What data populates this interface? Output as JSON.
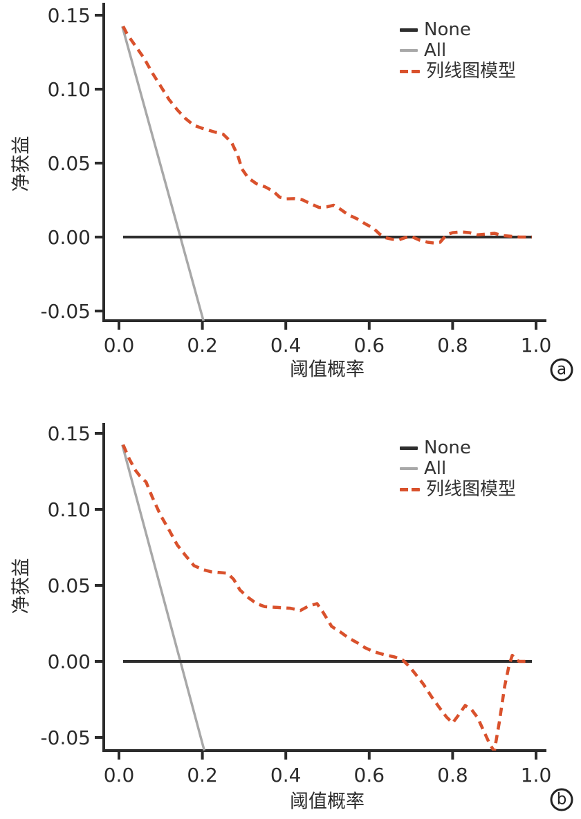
{
  "figure": {
    "background": "#ffffff",
    "panels": [
      "a",
      "b"
    ]
  },
  "colors": {
    "none": "#2d2d2d",
    "all": "#a8a8a8",
    "model": "#d9512c",
    "axis": "#2b2b2b",
    "text": "#333333"
  },
  "legend": {
    "items": [
      {
        "label": "None",
        "color": "#2d2d2d",
        "style": "solid"
      },
      {
        "label": "All",
        "color": "#a8a8a8",
        "style": "solid"
      },
      {
        "label": "列线图模型",
        "color": "#d9512c",
        "style": "dashed"
      }
    ]
  },
  "chart_data": [
    {
      "type": "line",
      "panel_label": "a",
      "xlabel": "阈值概率",
      "ylabel": "净获益",
      "xlim": [
        0,
        1
      ],
      "ylim": [
        -0.05,
        0.15
      ],
      "grid": false,
      "legend_position": "top-right",
      "x_ticks": [
        0,
        0.2,
        0.4,
        0.6,
        0.8,
        1.0
      ],
      "x_tick_labels": [
        "0.0",
        "0.2",
        "0.4",
        "0.6",
        "0.8",
        "1.0"
      ],
      "y_ticks": [
        0.15,
        0.1,
        0.05,
        0.0,
        -0.05
      ],
      "y_tick_labels": [
        "0.15",
        "0.10",
        "0.05",
        "0.00",
        "-0.05"
      ],
      "series": [
        {
          "name": "None",
          "color": "#2d2d2d",
          "style": "solid",
          "width": 4,
          "points": [
            [
              0.01,
              0
            ],
            [
              0.99,
              0
            ]
          ]
        },
        {
          "name": "All",
          "color": "#a8a8a8",
          "style": "solid",
          "width": 3.5,
          "points": [
            [
              0.008,
              0.1425
            ],
            [
              0.2035,
              -0.0575
            ]
          ]
        },
        {
          "name": "列线图模型",
          "color": "#d9512c",
          "style": "dashed",
          "width": 4.5,
          "points": [
            [
              0.01,
              0.1425
            ],
            [
              0.02,
              0.137
            ],
            [
              0.04,
              0.129
            ],
            [
              0.06,
              0.121
            ],
            [
              0.08,
              0.111
            ],
            [
              0.1,
              0.102
            ],
            [
              0.12,
              0.093
            ],
            [
              0.14,
              0.086
            ],
            [
              0.16,
              0.08
            ],
            [
              0.18,
              0.0755
            ],
            [
              0.2,
              0.0735
            ],
            [
              0.23,
              0.071
            ],
            [
              0.25,
              0.0695
            ],
            [
              0.27,
              0.064
            ],
            [
              0.285,
              0.055
            ],
            [
              0.295,
              0.046
            ],
            [
              0.31,
              0.04
            ],
            [
              0.33,
              0.036
            ],
            [
              0.35,
              0.034
            ],
            [
              0.37,
              0.031
            ],
            [
              0.385,
              0.027
            ],
            [
              0.4,
              0.0258
            ],
            [
              0.42,
              0.026
            ],
            [
              0.44,
              0.0252
            ],
            [
              0.46,
              0.0225
            ],
            [
              0.48,
              0.02
            ],
            [
              0.5,
              0.0205
            ],
            [
              0.515,
              0.0215
            ],
            [
              0.53,
              0.019
            ],
            [
              0.55,
              0.015
            ],
            [
              0.57,
              0.0125
            ],
            [
              0.59,
              0.009
            ],
            [
              0.61,
              0.006
            ],
            [
              0.625,
              0.002
            ],
            [
              0.64,
              -0.0005
            ],
            [
              0.655,
              -0.0015
            ],
            [
              0.67,
              -0.002
            ],
            [
              0.685,
              -0.0005
            ],
            [
              0.7,
              0.0005
            ],
            [
              0.72,
              -0.002
            ],
            [
              0.74,
              -0.0035
            ],
            [
              0.755,
              -0.004
            ],
            [
              0.77,
              -0.0035
            ],
            [
              0.785,
              0.0015
            ],
            [
              0.8,
              0.003
            ],
            [
              0.82,
              0.0035
            ],
            [
              0.84,
              0.003
            ],
            [
              0.86,
              0.0015
            ],
            [
              0.88,
              0.002
            ],
            [
              0.9,
              0.0025
            ],
            [
              0.92,
              0.001
            ],
            [
              0.94,
              0.0005
            ],
            [
              0.96,
              0
            ],
            [
              0.99,
              0
            ]
          ]
        }
      ]
    },
    {
      "type": "line",
      "panel_label": "b",
      "xlabel": "阈值概率",
      "ylabel": "净获益",
      "xlim": [
        0,
        1
      ],
      "ylim": [
        -0.05,
        0.15
      ],
      "grid": false,
      "legend_position": "top-right",
      "x_ticks": [
        0,
        0.2,
        0.4,
        0.6,
        0.8,
        1.0
      ],
      "x_tick_labels": [
        "0.0",
        "0.2",
        "0.4",
        "0.6",
        "0.8",
        "1.0"
      ],
      "y_ticks": [
        0.15,
        0.1,
        0.05,
        0.0,
        -0.05
      ],
      "y_tick_labels": [
        "0.15",
        "0.10",
        "0.05",
        "0.00",
        "-0.05"
      ],
      "series": [
        {
          "name": "None",
          "color": "#2d2d2d",
          "style": "solid",
          "width": 4,
          "points": [
            [
              0.01,
              0
            ],
            [
              0.99,
              0
            ]
          ]
        },
        {
          "name": "All",
          "color": "#a8a8a8",
          "style": "solid",
          "width": 3.5,
          "points": [
            [
              0.008,
              0.1425
            ],
            [
              0.2045,
              -0.0585
            ]
          ]
        },
        {
          "name": "列线图模型",
          "color": "#d9512c",
          "style": "dashed",
          "width": 4.5,
          "points": [
            [
              0.01,
              0.1425
            ],
            [
              0.025,
              0.133
            ],
            [
              0.04,
              0.1255
            ],
            [
              0.05,
              0.122
            ],
            [
              0.065,
              0.118
            ],
            [
              0.08,
              0.108
            ],
            [
              0.1,
              0.096
            ],
            [
              0.12,
              0.0865
            ],
            [
              0.14,
              0.0765
            ],
            [
              0.16,
              0.0695
            ],
            [
              0.18,
              0.063
            ],
            [
              0.2,
              0.0605
            ],
            [
              0.22,
              0.059
            ],
            [
              0.24,
              0.0585
            ],
            [
              0.26,
              0.058
            ],
            [
              0.275,
              0.054
            ],
            [
              0.29,
              0.047
            ],
            [
              0.31,
              0.042
            ],
            [
              0.33,
              0.038
            ],
            [
              0.35,
              0.036
            ],
            [
              0.38,
              0.0355
            ],
            [
              0.41,
              0.035
            ],
            [
              0.435,
              0.0335
            ],
            [
              0.455,
              0.0365
            ],
            [
              0.475,
              0.038
            ],
            [
              0.49,
              0.032
            ],
            [
              0.51,
              0.023
            ],
            [
              0.53,
              0.0195
            ],
            [
              0.55,
              0.0155
            ],
            [
              0.57,
              0.0125
            ],
            [
              0.59,
              0.009
            ],
            [
              0.61,
              0.0065
            ],
            [
              0.635,
              0.0045
            ],
            [
              0.66,
              0.003
            ],
            [
              0.68,
              0.001
            ],
            [
              0.695,
              -0.003
            ],
            [
              0.71,
              -0.008
            ],
            [
              0.73,
              -0.015
            ],
            [
              0.75,
              -0.0235
            ],
            [
              0.77,
              -0.031
            ],
            [
              0.785,
              -0.0365
            ],
            [
              0.8,
              -0.0405
            ],
            [
              0.815,
              -0.035
            ],
            [
              0.83,
              -0.029
            ],
            [
              0.845,
              -0.0315
            ],
            [
              0.86,
              -0.037
            ],
            [
              0.875,
              -0.046
            ],
            [
              0.89,
              -0.055
            ],
            [
              0.9,
              -0.059
            ],
            [
              0.912,
              -0.04
            ],
            [
              0.925,
              -0.016
            ],
            [
              0.935,
              -0.003
            ],
            [
              0.943,
              0.004
            ],
            [
              0.952,
              0.001
            ],
            [
              0.96,
              0
            ],
            [
              0.975,
              0
            ],
            [
              0.985,
              0
            ]
          ]
        }
      ]
    }
  ]
}
